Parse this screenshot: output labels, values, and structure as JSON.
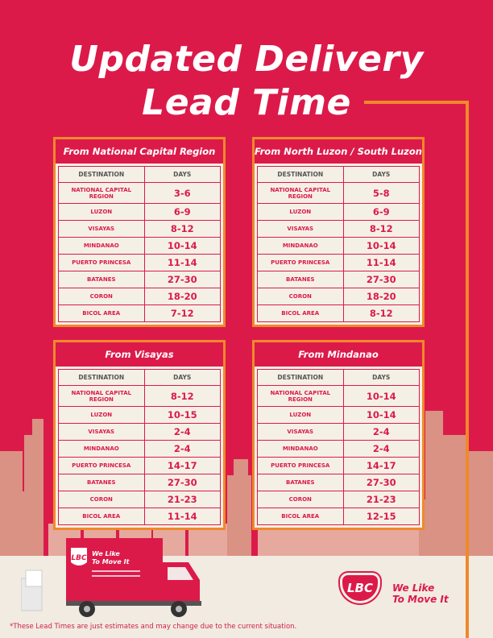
{
  "title": {
    "line1": "Updated Delivery",
    "line2": "Lead Time"
  },
  "colors": {
    "brand_red": "#dc1a4a",
    "accent_orange": "#f0892a",
    "cream": "#f5f0e6"
  },
  "column_headers": {
    "destination": "DESTINATION",
    "days": "DAYS"
  },
  "panels": [
    {
      "heading": "From National Capital Region",
      "rows": [
        {
          "destination": "NATIONAL CAPITAL REGION",
          "days": "3-6"
        },
        {
          "destination": "LUZON",
          "days": "6-9"
        },
        {
          "destination": "VISAYAS",
          "days": "8-12"
        },
        {
          "destination": "MINDANAO",
          "days": "10-14"
        },
        {
          "destination": "PUERTO PRINCESA",
          "days": "11-14"
        },
        {
          "destination": "BATANES",
          "days": "27-30"
        },
        {
          "destination": "CORON",
          "days": "18-20"
        },
        {
          "destination": "BICOL AREA",
          "days": "7-12"
        }
      ]
    },
    {
      "heading": "From North Luzon / South Luzon",
      "rows": [
        {
          "destination": "NATIONAL CAPITAL REGION",
          "days": "5-8"
        },
        {
          "destination": "LUZON",
          "days": "6-9"
        },
        {
          "destination": "VISAYAS",
          "days": "8-12"
        },
        {
          "destination": "MINDANAO",
          "days": "10-14"
        },
        {
          "destination": "PUERTO PRINCESA",
          "days": "11-14"
        },
        {
          "destination": "BATANES",
          "days": "27-30"
        },
        {
          "destination": "CORON",
          "days": "18-20"
        },
        {
          "destination": "BICOL AREA",
          "days": "8-12"
        }
      ]
    },
    {
      "heading": "From Visayas",
      "rows": [
        {
          "destination": "NATIONAL CAPITAL REGION",
          "days": "8-12"
        },
        {
          "destination": "LUZON",
          "days": "10-15"
        },
        {
          "destination": "VISAYAS",
          "days": "2-4"
        },
        {
          "destination": "MINDANAO",
          "days": "2-4"
        },
        {
          "destination": "PUERTO PRINCESA",
          "days": "14-17"
        },
        {
          "destination": "BATANES",
          "days": "27-30"
        },
        {
          "destination": "CORON",
          "days": "21-23"
        },
        {
          "destination": "BICOL AREA",
          "days": "11-14"
        }
      ]
    },
    {
      "heading": "From Mindanao",
      "rows": [
        {
          "destination": "NATIONAL CAPITAL REGION",
          "days": "10-14"
        },
        {
          "destination": "LUZON",
          "days": "10-14"
        },
        {
          "destination": "VISAYAS",
          "days": "2-4"
        },
        {
          "destination": "MINDANAO",
          "days": "2-4"
        },
        {
          "destination": "PUERTO PRINCESA",
          "days": "14-17"
        },
        {
          "destination": "BATANES",
          "days": "27-30"
        },
        {
          "destination": "CORON",
          "days": "21-23"
        },
        {
          "destination": "BICOL AREA",
          "days": "12-15"
        }
      ]
    }
  ],
  "brand": {
    "logo_text": "LBC",
    "tagline_line1": "We Like",
    "tagline_line2": "To Move It"
  },
  "truck": {
    "logo_text": "LBC",
    "tagline_line1": "We Like",
    "tagline_line2": "To Move It"
  },
  "footnote": "*These Lead Times are just estimates and may change due to the current situation."
}
